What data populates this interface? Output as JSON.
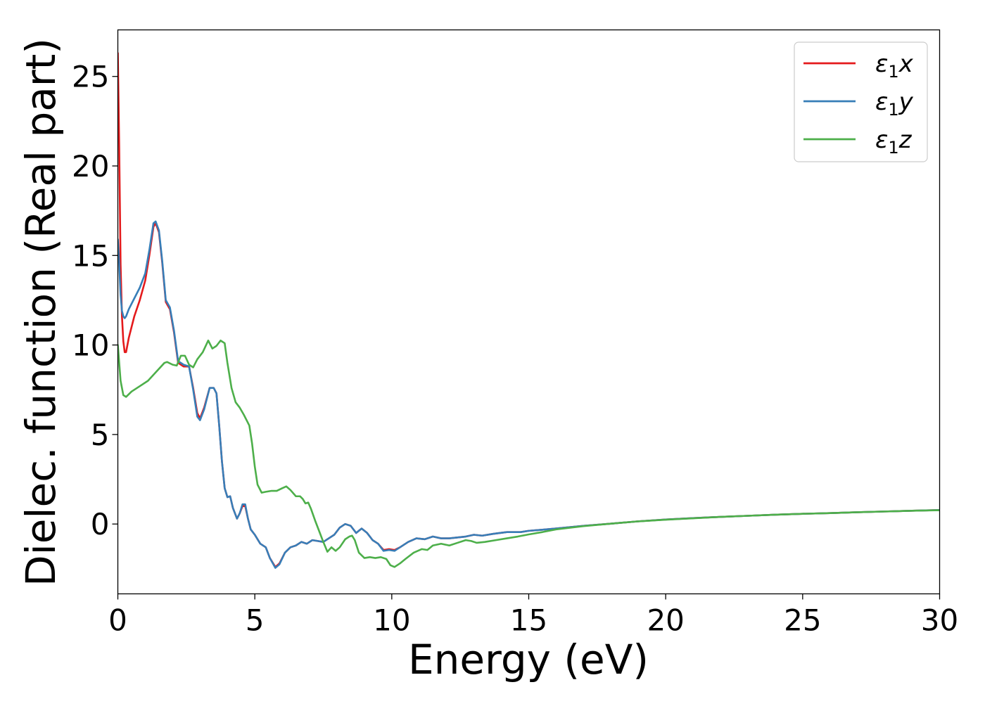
{
  "chart_data": {
    "type": "line",
    "title": "",
    "xlabel": "Energy (eV)",
    "ylabel": "Dielec. function (Real part)",
    "xlim": [
      0,
      30
    ],
    "ylim": [
      -3.9,
      27.6
    ],
    "xticks": [
      0,
      5,
      10,
      15,
      20,
      25,
      30
    ],
    "yticks": [
      0,
      5,
      10,
      15,
      20,
      25
    ],
    "grid": false,
    "legend_position": "top-right",
    "series": [
      {
        "name": "ε1x",
        "legend": {
          "base": "ε",
          "sub": "1",
          "suffix": "x"
        },
        "color": "#e41a1c",
        "points": [
          [
            0.0,
            26.3
          ],
          [
            0.05,
            21.0
          ],
          [
            0.1,
            14.5
          ],
          [
            0.15,
            11.6
          ],
          [
            0.2,
            10.2
          ],
          [
            0.25,
            9.6
          ],
          [
            0.3,
            9.6
          ],
          [
            0.4,
            10.4
          ],
          [
            0.6,
            11.6
          ],
          [
            0.8,
            12.5
          ],
          [
            1.0,
            13.6
          ],
          [
            1.15,
            15.0
          ],
          [
            1.3,
            16.6
          ],
          [
            1.38,
            16.8
          ],
          [
            1.5,
            16.3
          ],
          [
            1.62,
            14.6
          ],
          [
            1.75,
            12.4
          ],
          [
            1.9,
            12.0
          ],
          [
            2.05,
            10.7
          ],
          [
            2.2,
            9.0
          ],
          [
            2.4,
            8.8
          ],
          [
            2.6,
            8.8
          ],
          [
            2.75,
            7.6
          ],
          [
            2.9,
            6.2
          ],
          [
            3.0,
            5.9
          ],
          [
            3.15,
            6.5
          ],
          [
            3.35,
            7.6
          ],
          [
            3.5,
            7.6
          ],
          [
            3.6,
            7.3
          ],
          [
            3.7,
            5.5
          ],
          [
            3.8,
            3.5
          ],
          [
            3.9,
            2.0
          ],
          [
            4.0,
            1.5
          ],
          [
            4.1,
            1.55
          ],
          [
            4.2,
            0.9
          ],
          [
            4.35,
            0.3
          ],
          [
            4.45,
            0.6
          ],
          [
            4.55,
            1.0
          ],
          [
            4.65,
            1.0
          ],
          [
            4.75,
            0.3
          ],
          [
            4.85,
            -0.3
          ],
          [
            5.0,
            -0.6
          ],
          [
            5.2,
            -1.1
          ],
          [
            5.4,
            -1.3
          ],
          [
            5.55,
            -1.9
          ],
          [
            5.75,
            -2.4
          ],
          [
            5.9,
            -2.2
          ],
          [
            6.1,
            -1.6
          ],
          [
            6.3,
            -1.3
          ],
          [
            6.5,
            -1.2
          ],
          [
            6.7,
            -1.0
          ],
          [
            6.9,
            -1.1
          ],
          [
            7.1,
            -0.9
          ],
          [
            7.3,
            -0.95
          ],
          [
            7.5,
            -1.0
          ],
          [
            7.7,
            -0.8
          ],
          [
            7.9,
            -0.6
          ],
          [
            8.1,
            -0.2
          ],
          [
            8.3,
            0.0
          ],
          [
            8.5,
            -0.1
          ],
          [
            8.7,
            -0.5
          ],
          [
            8.9,
            -0.25
          ],
          [
            9.1,
            -0.5
          ],
          [
            9.3,
            -0.9
          ],
          [
            9.5,
            -1.1
          ],
          [
            9.7,
            -1.45
          ],
          [
            9.9,
            -1.4
          ],
          [
            10.1,
            -1.45
          ],
          [
            10.3,
            -1.3
          ],
          [
            10.6,
            -1.0
          ],
          [
            10.9,
            -0.8
          ],
          [
            11.2,
            -0.85
          ],
          [
            11.5,
            -0.7
          ],
          [
            11.8,
            -0.8
          ],
          [
            12.1,
            -0.8
          ],
          [
            12.4,
            -0.75
          ],
          [
            12.7,
            -0.7
          ],
          [
            13.0,
            -0.6
          ],
          [
            13.3,
            -0.65
          ],
          [
            13.7,
            -0.55
          ],
          [
            14.2,
            -0.45
          ],
          [
            14.7,
            -0.45
          ],
          [
            15.0,
            -0.38
          ],
          [
            15.5,
            -0.32
          ],
          [
            16.0,
            -0.25
          ],
          [
            17.0,
            -0.1
          ],
          [
            18.0,
            0.02
          ],
          [
            19.0,
            0.15
          ],
          [
            20.0,
            0.25
          ],
          [
            21.0,
            0.33
          ],
          [
            22.0,
            0.4
          ],
          [
            23.0,
            0.46
          ],
          [
            24.0,
            0.52
          ],
          [
            25.0,
            0.57
          ],
          [
            26.0,
            0.61
          ],
          [
            27.0,
            0.66
          ],
          [
            28.0,
            0.7
          ],
          [
            29.0,
            0.74
          ],
          [
            30.0,
            0.78
          ]
        ]
      },
      {
        "name": "ε1y",
        "legend": {
          "base": "ε",
          "sub": "1",
          "suffix": "y"
        },
        "color": "#377eb8",
        "points": [
          [
            0.0,
            15.9
          ],
          [
            0.05,
            14.5
          ],
          [
            0.1,
            12.8
          ],
          [
            0.15,
            11.9
          ],
          [
            0.2,
            11.6
          ],
          [
            0.25,
            11.5
          ],
          [
            0.3,
            11.6
          ],
          [
            0.4,
            12.0
          ],
          [
            0.6,
            12.6
          ],
          [
            0.8,
            13.2
          ],
          [
            1.0,
            14.0
          ],
          [
            1.15,
            15.3
          ],
          [
            1.3,
            16.8
          ],
          [
            1.38,
            16.9
          ],
          [
            1.5,
            16.4
          ],
          [
            1.62,
            14.7
          ],
          [
            1.75,
            12.5
          ],
          [
            1.9,
            12.1
          ],
          [
            2.05,
            10.8
          ],
          [
            2.2,
            9.1
          ],
          [
            2.4,
            8.9
          ],
          [
            2.6,
            8.8
          ],
          [
            2.75,
            7.5
          ],
          [
            2.9,
            6.0
          ],
          [
            3.0,
            5.8
          ],
          [
            3.15,
            6.4
          ],
          [
            3.35,
            7.6
          ],
          [
            3.5,
            7.6
          ],
          [
            3.6,
            7.3
          ],
          [
            3.7,
            5.5
          ],
          [
            3.8,
            3.5
          ],
          [
            3.9,
            2.0
          ],
          [
            4.0,
            1.5
          ],
          [
            4.1,
            1.55
          ],
          [
            4.2,
            0.9
          ],
          [
            4.35,
            0.3
          ],
          [
            4.45,
            0.6
          ],
          [
            4.55,
            1.1
          ],
          [
            4.65,
            1.1
          ],
          [
            4.75,
            0.3
          ],
          [
            4.85,
            -0.3
          ],
          [
            5.0,
            -0.6
          ],
          [
            5.2,
            -1.1
          ],
          [
            5.4,
            -1.3
          ],
          [
            5.55,
            -1.9
          ],
          [
            5.75,
            -2.45
          ],
          [
            5.9,
            -2.25
          ],
          [
            6.1,
            -1.6
          ],
          [
            6.3,
            -1.3
          ],
          [
            6.5,
            -1.2
          ],
          [
            6.7,
            -1.0
          ],
          [
            6.9,
            -1.1
          ],
          [
            7.1,
            -0.9
          ],
          [
            7.3,
            -0.95
          ],
          [
            7.5,
            -1.0
          ],
          [
            7.7,
            -0.8
          ],
          [
            7.9,
            -0.6
          ],
          [
            8.1,
            -0.2
          ],
          [
            8.3,
            0.0
          ],
          [
            8.5,
            -0.1
          ],
          [
            8.7,
            -0.5
          ],
          [
            8.9,
            -0.25
          ],
          [
            9.1,
            -0.5
          ],
          [
            9.3,
            -0.9
          ],
          [
            9.5,
            -1.1
          ],
          [
            9.7,
            -1.5
          ],
          [
            9.9,
            -1.45
          ],
          [
            10.1,
            -1.5
          ],
          [
            10.3,
            -1.3
          ],
          [
            10.6,
            -1.0
          ],
          [
            10.9,
            -0.8
          ],
          [
            11.2,
            -0.85
          ],
          [
            11.5,
            -0.7
          ],
          [
            11.8,
            -0.8
          ],
          [
            12.1,
            -0.8
          ],
          [
            12.4,
            -0.75
          ],
          [
            12.7,
            -0.7
          ],
          [
            13.0,
            -0.6
          ],
          [
            13.3,
            -0.65
          ],
          [
            13.7,
            -0.55
          ],
          [
            14.2,
            -0.45
          ],
          [
            14.7,
            -0.45
          ],
          [
            15.0,
            -0.38
          ],
          [
            15.5,
            -0.32
          ],
          [
            16.0,
            -0.25
          ],
          [
            17.0,
            -0.1
          ],
          [
            18.0,
            0.02
          ],
          [
            19.0,
            0.15
          ],
          [
            20.0,
            0.25
          ],
          [
            21.0,
            0.33
          ],
          [
            22.0,
            0.4
          ],
          [
            23.0,
            0.46
          ],
          [
            24.0,
            0.52
          ],
          [
            25.0,
            0.57
          ],
          [
            26.0,
            0.61
          ],
          [
            27.0,
            0.66
          ],
          [
            28.0,
            0.7
          ],
          [
            29.0,
            0.74
          ],
          [
            30.0,
            0.78
          ]
        ]
      },
      {
        "name": "ε1z",
        "legend": {
          "base": "ε",
          "sub": "1",
          "suffix": "z"
        },
        "color": "#4daf4a",
        "points": [
          [
            0.0,
            10.0
          ],
          [
            0.1,
            8.0
          ],
          [
            0.2,
            7.2
          ],
          [
            0.3,
            7.1
          ],
          [
            0.5,
            7.4
          ],
          [
            0.8,
            7.7
          ],
          [
            1.1,
            8.0
          ],
          [
            1.4,
            8.5
          ],
          [
            1.7,
            9.0
          ],
          [
            1.8,
            9.05
          ],
          [
            2.0,
            8.9
          ],
          [
            2.15,
            8.85
          ],
          [
            2.3,
            9.4
          ],
          [
            2.45,
            9.4
          ],
          [
            2.6,
            8.9
          ],
          [
            2.75,
            8.75
          ],
          [
            2.9,
            9.2
          ],
          [
            3.1,
            9.6
          ],
          [
            3.3,
            10.25
          ],
          [
            3.45,
            9.8
          ],
          [
            3.6,
            9.95
          ],
          [
            3.75,
            10.25
          ],
          [
            3.9,
            10.1
          ],
          [
            4.0,
            9.0
          ],
          [
            4.15,
            7.6
          ],
          [
            4.3,
            6.8
          ],
          [
            4.45,
            6.5
          ],
          [
            4.6,
            6.1
          ],
          [
            4.8,
            5.5
          ],
          [
            4.9,
            4.5
          ],
          [
            5.0,
            3.2
          ],
          [
            5.1,
            2.2
          ],
          [
            5.25,
            1.75
          ],
          [
            5.4,
            1.8
          ],
          [
            5.6,
            1.85
          ],
          [
            5.8,
            1.85
          ],
          [
            6.0,
            2.0
          ],
          [
            6.15,
            2.1
          ],
          [
            6.3,
            1.9
          ],
          [
            6.5,
            1.55
          ],
          [
            6.65,
            1.55
          ],
          [
            6.75,
            1.4
          ],
          [
            6.85,
            1.15
          ],
          [
            6.95,
            1.2
          ],
          [
            7.05,
            0.85
          ],
          [
            7.2,
            0.2
          ],
          [
            7.35,
            -0.4
          ],
          [
            7.5,
            -1.0
          ],
          [
            7.65,
            -1.55
          ],
          [
            7.8,
            -1.3
          ],
          [
            7.95,
            -1.5
          ],
          [
            8.1,
            -1.3
          ],
          [
            8.3,
            -0.85
          ],
          [
            8.45,
            -0.7
          ],
          [
            8.55,
            -0.65
          ],
          [
            8.65,
            -0.9
          ],
          [
            8.8,
            -1.6
          ],
          [
            9.0,
            -1.9
          ],
          [
            9.2,
            -1.85
          ],
          [
            9.4,
            -1.9
          ],
          [
            9.6,
            -1.85
          ],
          [
            9.8,
            -1.95
          ],
          [
            9.95,
            -2.3
          ],
          [
            10.1,
            -2.4
          ],
          [
            10.3,
            -2.2
          ],
          [
            10.5,
            -1.95
          ],
          [
            10.8,
            -1.6
          ],
          [
            11.1,
            -1.4
          ],
          [
            11.3,
            -1.45
          ],
          [
            11.5,
            -1.2
          ],
          [
            11.8,
            -1.1
          ],
          [
            12.1,
            -1.2
          ],
          [
            12.4,
            -1.05
          ],
          [
            12.7,
            -0.9
          ],
          [
            12.9,
            -0.95
          ],
          [
            13.1,
            -1.05
          ],
          [
            13.4,
            -1.0
          ],
          [
            13.8,
            -0.9
          ],
          [
            14.2,
            -0.8
          ],
          [
            14.6,
            -0.7
          ],
          [
            15.0,
            -0.58
          ],
          [
            15.5,
            -0.45
          ],
          [
            16.0,
            -0.3
          ],
          [
            17.0,
            -0.12
          ],
          [
            18.0,
            0.02
          ],
          [
            19.0,
            0.15
          ],
          [
            20.0,
            0.24
          ],
          [
            21.0,
            0.32
          ],
          [
            22.0,
            0.4
          ],
          [
            23.0,
            0.46
          ],
          [
            24.0,
            0.52
          ],
          [
            25.0,
            0.57
          ],
          [
            26.0,
            0.61
          ],
          [
            27.0,
            0.66
          ],
          [
            28.0,
            0.7
          ],
          [
            29.0,
            0.74
          ],
          [
            30.0,
            0.77
          ]
        ]
      }
    ]
  }
}
